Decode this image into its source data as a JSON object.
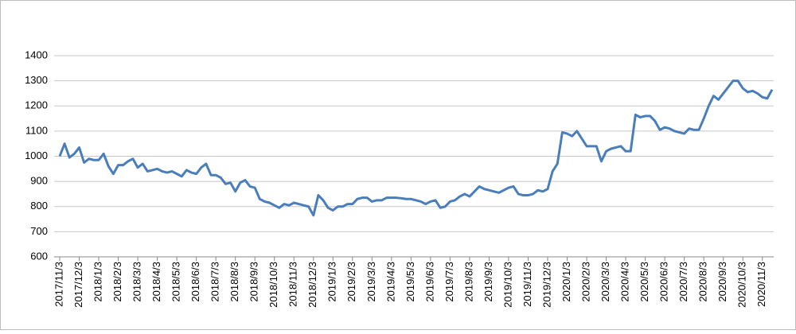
{
  "chart_data": {
    "type": "line",
    "categories": [
      "2017/11/3",
      null,
      null,
      null,
      "2017/12/3",
      null,
      null,
      null,
      "2018/1/3",
      null,
      null,
      null,
      "2018/2/3",
      null,
      null,
      null,
      "2018/3/3",
      null,
      null,
      null,
      "2018/4/3",
      null,
      null,
      null,
      "2018/5/3",
      null,
      null,
      null,
      "2018/6/3",
      null,
      null,
      null,
      "2018/7/3",
      null,
      null,
      null,
      "2018/8/3",
      null,
      null,
      null,
      "2018/9/3",
      null,
      null,
      null,
      "2018/10/3",
      null,
      null,
      null,
      "2018/11/3",
      null,
      null,
      null,
      "2018/12/3",
      null,
      null,
      null,
      "2019/1/3",
      null,
      null,
      null,
      "2019/2/3",
      null,
      null,
      null,
      "2019/3/3",
      null,
      null,
      null,
      "2019/4/3",
      null,
      null,
      null,
      "2019/5/3",
      null,
      null,
      null,
      "2019/6/3",
      null,
      null,
      null,
      "2019/7/3",
      null,
      null,
      null,
      "2019/8/3",
      null,
      null,
      null,
      "2019/9/3",
      null,
      null,
      null,
      "2019/10/3",
      null,
      null,
      null,
      "2019/11/3",
      null,
      null,
      null,
      "2019/12/3",
      null,
      null,
      null,
      "2020/1/3",
      null,
      null,
      null,
      "2020/2/3",
      null,
      null,
      null,
      "2020/3/3",
      null,
      null,
      null,
      "2020/4/3",
      null,
      null,
      null,
      "2020/5/3",
      null,
      null,
      null,
      "2020/6/3",
      null,
      null,
      null,
      "2020/7/3",
      null,
      null,
      null,
      "2020/8/3",
      null,
      null,
      null,
      "2020/9/3",
      null,
      null,
      null,
      "2020/10/3",
      null,
      null,
      null,
      "2020/11/3",
      null,
      null
    ],
    "series": [
      {
        "color": "#4a7ebb",
        "values": [
          1000,
          1050,
          995,
          1010,
          1035,
          975,
          990,
          985,
          985,
          1010,
          960,
          930,
          965,
          965,
          980,
          990,
          955,
          970,
          940,
          945,
          950,
          940,
          935,
          940,
          930,
          920,
          945,
          935,
          930,
          955,
          970,
          925,
          925,
          915,
          890,
          895,
          860,
          895,
          905,
          880,
          875,
          830,
          820,
          815,
          805,
          795,
          810,
          805,
          815,
          810,
          805,
          800,
          765,
          845,
          825,
          795,
          785,
          800,
          800,
          810,
          810,
          830,
          835,
          835,
          820,
          825,
          825,
          835,
          835,
          835,
          833,
          830,
          830,
          825,
          820,
          810,
          820,
          825,
          795,
          800,
          820,
          825,
          840,
          850,
          840,
          860,
          880,
          870,
          865,
          860,
          855,
          865,
          875,
          880,
          850,
          845,
          845,
          850,
          865,
          860,
          870,
          940,
          970,
          1095,
          1090,
          1080,
          1100,
          1070,
          1040,
          1040,
          1040,
          980,
          1020,
          1030,
          1035,
          1040,
          1020,
          1020,
          1165,
          1155,
          1160,
          1160,
          1140,
          1105,
          1115,
          1110,
          1100,
          1095,
          1090,
          1110,
          1105,
          1105,
          1150,
          1200,
          1240,
          1225,
          1250,
          1275,
          1300,
          1300,
          1270,
          1255,
          1260,
          1250,
          1235,
          1230,
          1265
        ]
      }
    ],
    "ylim": [
      600,
      1400
    ],
    "yticks": [
      600,
      700,
      800,
      900,
      1000,
      1100,
      1200,
      1300,
      1400
    ],
    "grid": true
  }
}
